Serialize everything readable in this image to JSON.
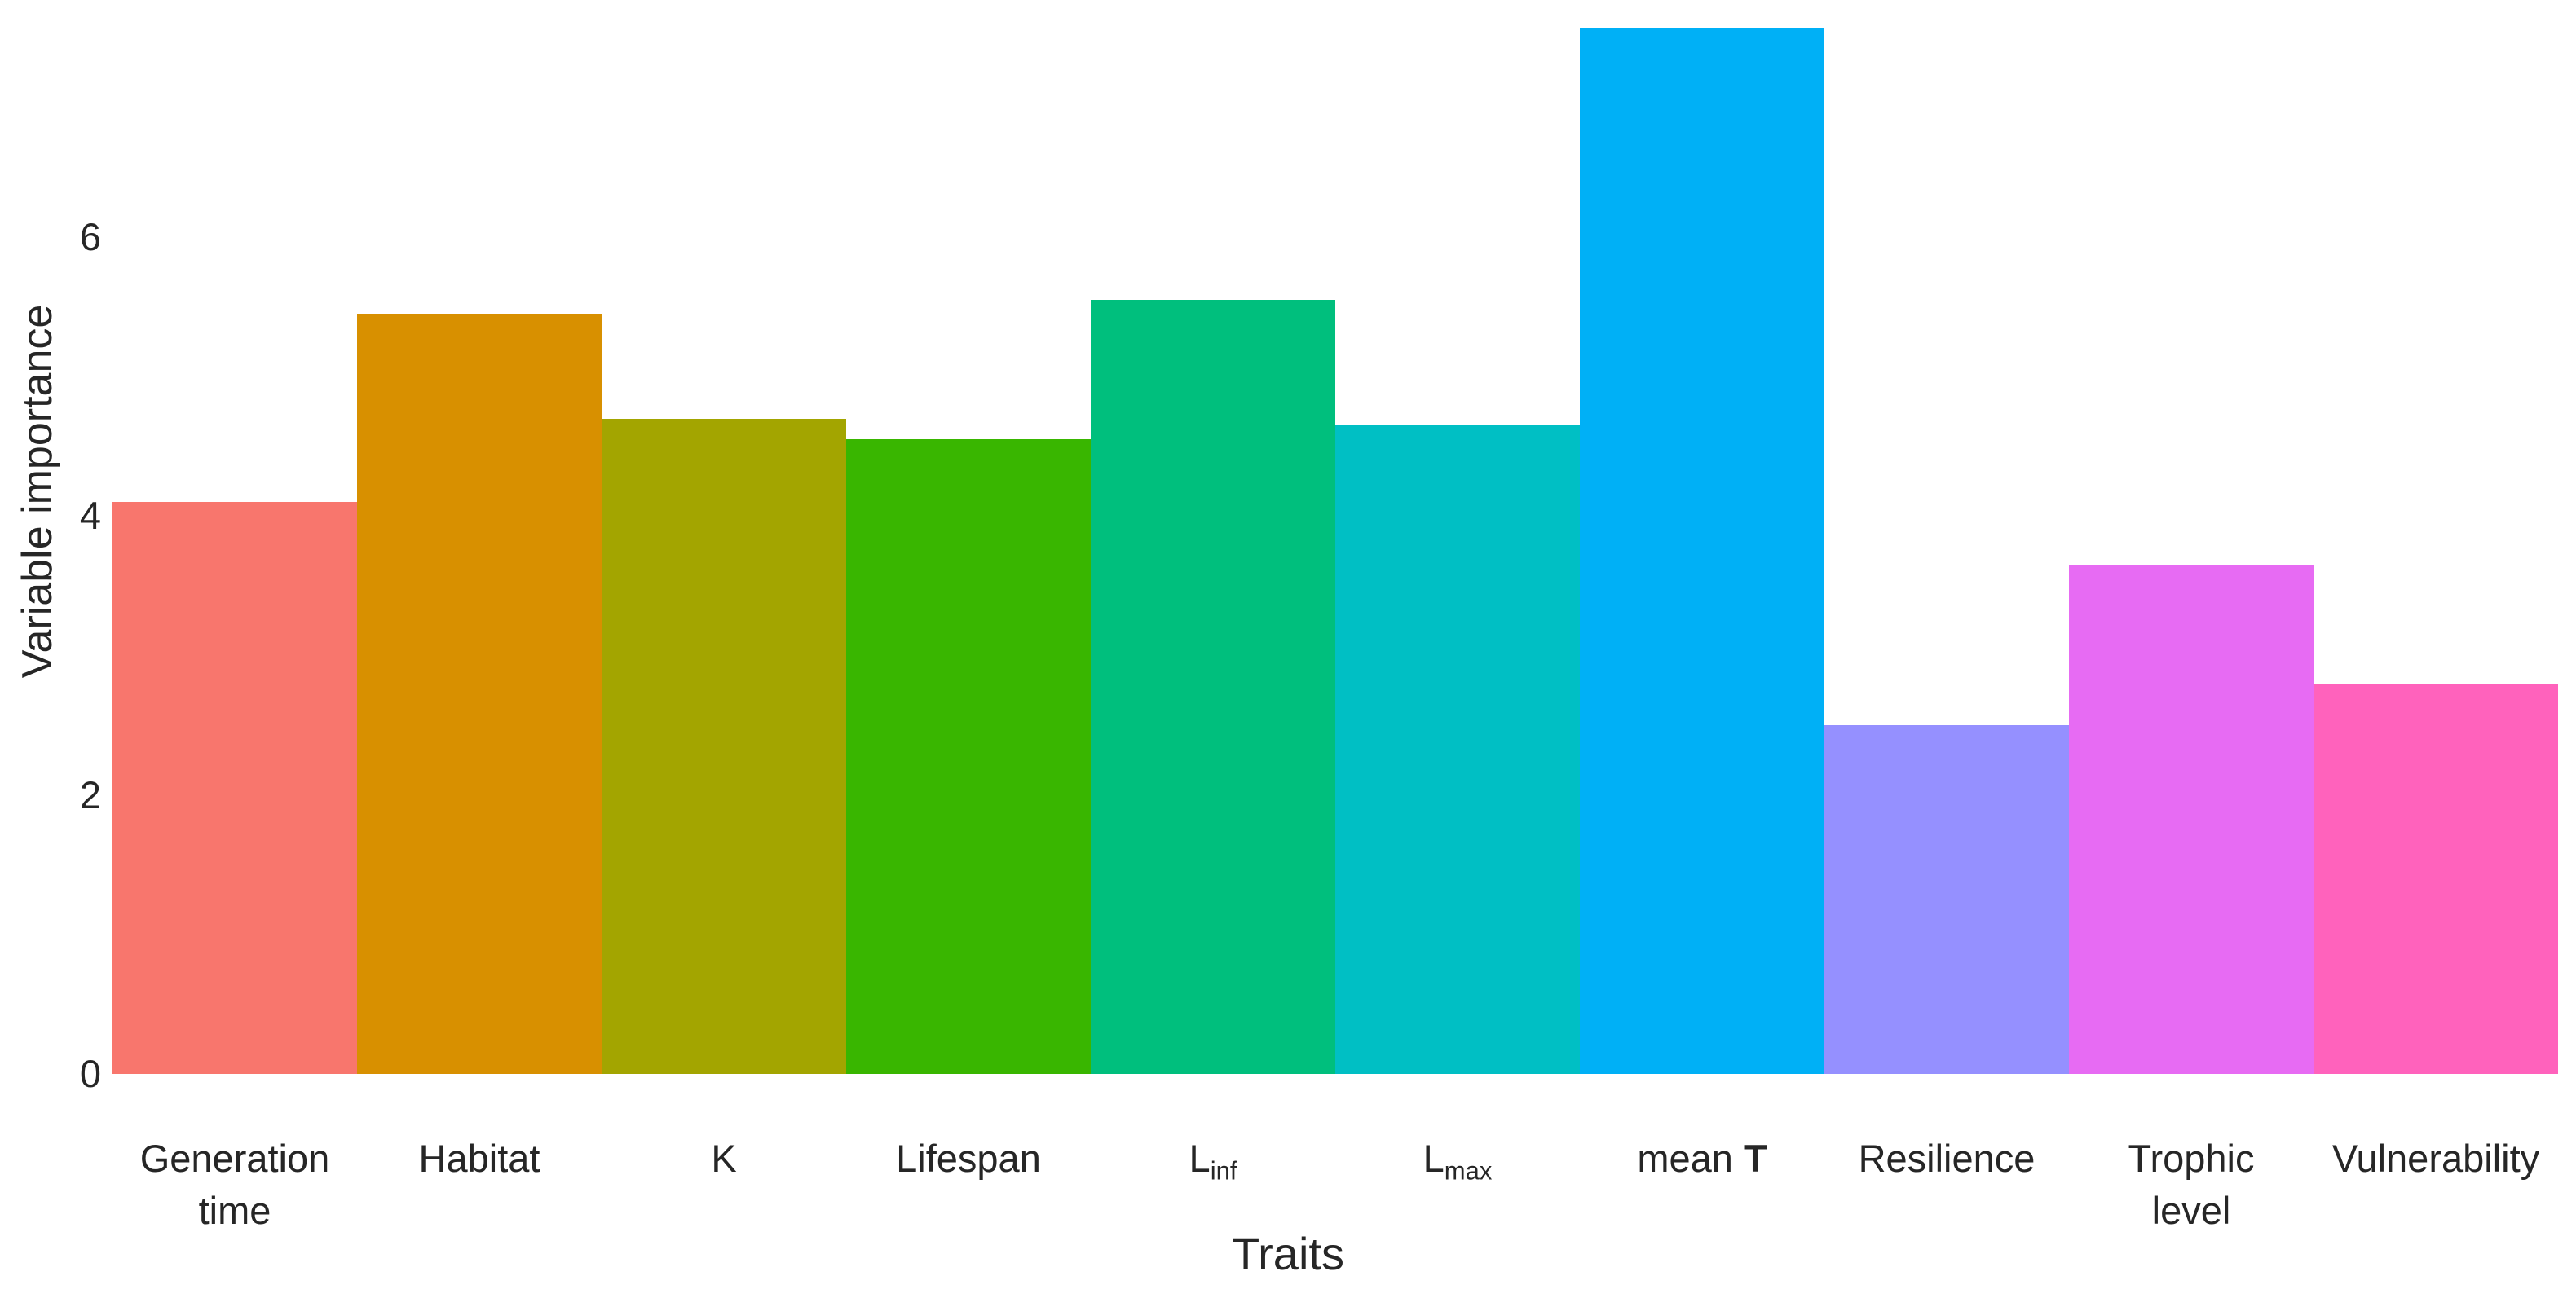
{
  "chart_data": {
    "type": "bar",
    "xlabel": "Traits",
    "ylabel": "Variable importance",
    "ylim": [
      0,
      7.7
    ],
    "yticks": [
      0,
      2,
      4,
      6
    ],
    "grid": false,
    "legend": false,
    "background_color": "#ffffff",
    "text_color": "#262626",
    "categories": [
      {
        "label": "Generation time",
        "line1": "Generation",
        "line2": "time"
      },
      {
        "label": "Habitat",
        "line1": "Habitat"
      },
      {
        "label": "K",
        "line1": "K"
      },
      {
        "label": "Lifespan",
        "line1": "Lifespan"
      },
      {
        "label": "L_inf",
        "line1": "L",
        "sub": "inf"
      },
      {
        "label": "L_max",
        "line1": "L",
        "sub": "max"
      },
      {
        "label": "mean T",
        "line1": "mean",
        "bold": "T"
      },
      {
        "label": "Resilience",
        "line1": "Resilience"
      },
      {
        "label": "Trophic level",
        "line1": "Trophic",
        "line2": "level"
      },
      {
        "label": "Vulnerability",
        "line1": "Vulnerability"
      }
    ],
    "values": [
      4.1,
      5.45,
      4.7,
      4.55,
      5.55,
      4.65,
      7.5,
      2.5,
      3.65,
      2.8
    ],
    "colors": [
      "#F8766D",
      "#D89000",
      "#A3A500",
      "#39B600",
      "#00BF7D",
      "#00BFC4",
      "#00B0F6",
      "#9590FF",
      "#E76BF3",
      "#FF62BC"
    ]
  }
}
